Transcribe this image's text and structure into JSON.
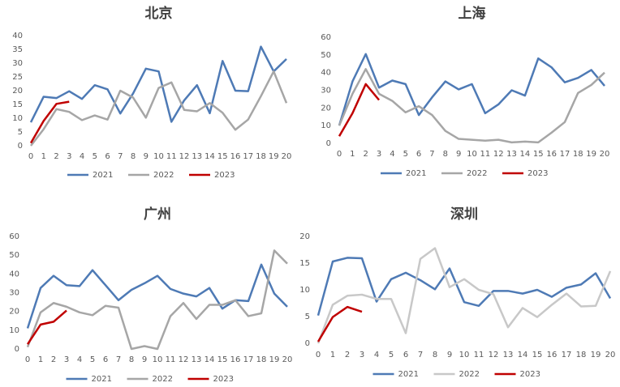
{
  "chart_data": [
    {
      "type": "line",
      "title": "北京",
      "x": [
        0,
        1,
        2,
        3,
        4,
        5,
        6,
        7,
        8,
        9,
        10,
        11,
        12,
        13,
        14,
        15,
        16,
        17,
        18,
        19,
        20
      ],
      "xlim": [
        0,
        20
      ],
      "ylim": [
        0,
        40
      ],
      "yticks": [
        0,
        5,
        10,
        15,
        20,
        25,
        30,
        35,
        40
      ],
      "grid": false,
      "legend": "bottom",
      "series": [
        {
          "name": "2021",
          "color": "#4e7ab5",
          "values": [
            8.5,
            17.8,
            17.3,
            19.8,
            17,
            22,
            20.5,
            11.7,
            19,
            28,
            27,
            8.7,
            16.5,
            22,
            11.8,
            30.8,
            20,
            19.8,
            36,
            27,
            31.5
          ]
        },
        {
          "name": "2022",
          "color": "#a6a6a6",
          "values": [
            0,
            6,
            13.3,
            12.3,
            9.3,
            11,
            9.5,
            20,
            17.5,
            10.2,
            21,
            23,
            13,
            12.5,
            15.5,
            12,
            5.8,
            9.5,
            18,
            27,
            15.5
          ]
        },
        {
          "name": "2023",
          "color": "#c00000",
          "values": [
            1,
            9,
            15.2,
            16,
            null,
            null,
            null,
            null,
            null,
            null,
            null,
            null,
            null,
            null,
            null,
            null,
            null,
            null,
            null,
            null,
            null
          ]
        }
      ]
    },
    {
      "type": "line",
      "title": "上海",
      "x": [
        0,
        1,
        2,
        3,
        4,
        5,
        6,
        7,
        8,
        9,
        10,
        11,
        12,
        13,
        14,
        15,
        16,
        17,
        18,
        19,
        20
      ],
      "xlim": [
        0,
        20
      ],
      "ylim": [
        0,
        60
      ],
      "yticks": [
        0,
        10,
        20,
        30,
        40,
        50,
        60
      ],
      "grid": false,
      "legend": "bottom",
      "series": [
        {
          "name": "2021",
          "color": "#4e7ab5",
          "values": [
            10,
            35,
            50.5,
            31.5,
            35.5,
            33.5,
            16,
            26,
            35,
            30.5,
            33.5,
            17,
            22,
            30,
            27,
            48,
            43,
            34.5,
            37,
            41.5,
            32.5
          ]
        },
        {
          "name": "2022",
          "color": "#a6a6a6",
          "values": [
            10,
            28,
            42,
            28,
            24,
            17.5,
            21,
            16,
            7,
            2.5,
            2,
            1.5,
            2,
            0.5,
            1,
            0.5,
            6,
            12,
            28.5,
            33,
            40
          ]
        },
        {
          "name": "2023",
          "color": "#c00000",
          "values": [
            4,
            17,
            33.5,
            24.5,
            null,
            null,
            null,
            null,
            null,
            null,
            null,
            null,
            null,
            null,
            null,
            null,
            null,
            null,
            null,
            null,
            null
          ]
        }
      ]
    },
    {
      "type": "line",
      "title": "广州",
      "x": [
        0,
        1,
        2,
        3,
        4,
        5,
        6,
        7,
        8,
        9,
        10,
        11,
        12,
        13,
        14,
        15,
        16,
        17,
        18,
        19,
        20
      ],
      "xlim": [
        0,
        20
      ],
      "ylim": [
        0,
        60
      ],
      "yticks": [
        0,
        10,
        20,
        30,
        40,
        50,
        60
      ],
      "grid": false,
      "legend": "bottom",
      "series": [
        {
          "name": "2021",
          "color": "#4e7ab5",
          "values": [
            11,
            32.5,
            39,
            34,
            33.5,
            42,
            34,
            26,
            31.5,
            35,
            39,
            32,
            29.5,
            28,
            32.5,
            21.5,
            26,
            25.5,
            45,
            29.5,
            22.5
          ]
        },
        {
          "name": "2022",
          "color": "#a6a6a6",
          "values": [
            1,
            19.5,
            24.5,
            22.5,
            19.5,
            18,
            23,
            22,
            0,
            1.5,
            0,
            17.5,
            24.5,
            16,
            23.5,
            23.5,
            26,
            17.5,
            19,
            52.5,
            45.5
          ]
        },
        {
          "name": "2023",
          "color": "#c00000",
          "values": [
            2.5,
            13,
            14.5,
            20.5,
            null,
            null,
            null,
            null,
            null,
            null,
            null,
            null,
            null,
            null,
            null,
            null,
            null,
            null,
            null,
            null,
            null
          ]
        }
      ]
    },
    {
      "type": "line",
      "title": "深圳",
      "x": [
        0,
        1,
        2,
        3,
        4,
        5,
        6,
        7,
        8,
        9,
        10,
        11,
        12,
        13,
        14,
        15,
        16,
        17,
        18,
        19,
        20
      ],
      "xlim": [
        0,
        20
      ],
      "ylim": [
        0,
        20
      ],
      "yticks": [
        0,
        5,
        10,
        15,
        20
      ],
      "grid": false,
      "legend": "bottom",
      "series": [
        {
          "name": "2021",
          "color": "#4e7ab5",
          "values": [
            5.2,
            15.3,
            16,
            15.9,
            7.8,
            12,
            13.2,
            11.8,
            10.1,
            14,
            7.7,
            7,
            9.8,
            9.8,
            9.3,
            10,
            8.7,
            10.4,
            11,
            13.1,
            8.4
          ]
        },
        {
          "name": "2022",
          "color": "#c8c8c8",
          "values": [
            0,
            7.2,
            8.9,
            9.1,
            8.3,
            8.3,
            1.9,
            15.8,
            17.8,
            10.5,
            12,
            10,
            9.2,
            3,
            6.6,
            4.9,
            7.2,
            9.3,
            6.9,
            7,
            13.5
          ]
        },
        {
          "name": "2023",
          "color": "#c00000",
          "values": [
            0.3,
            4.9,
            6.8,
            5.9,
            null,
            null,
            null,
            null,
            null,
            null,
            null,
            null,
            null,
            null,
            null,
            null,
            null,
            null,
            null,
            null,
            null
          ]
        }
      ]
    }
  ]
}
